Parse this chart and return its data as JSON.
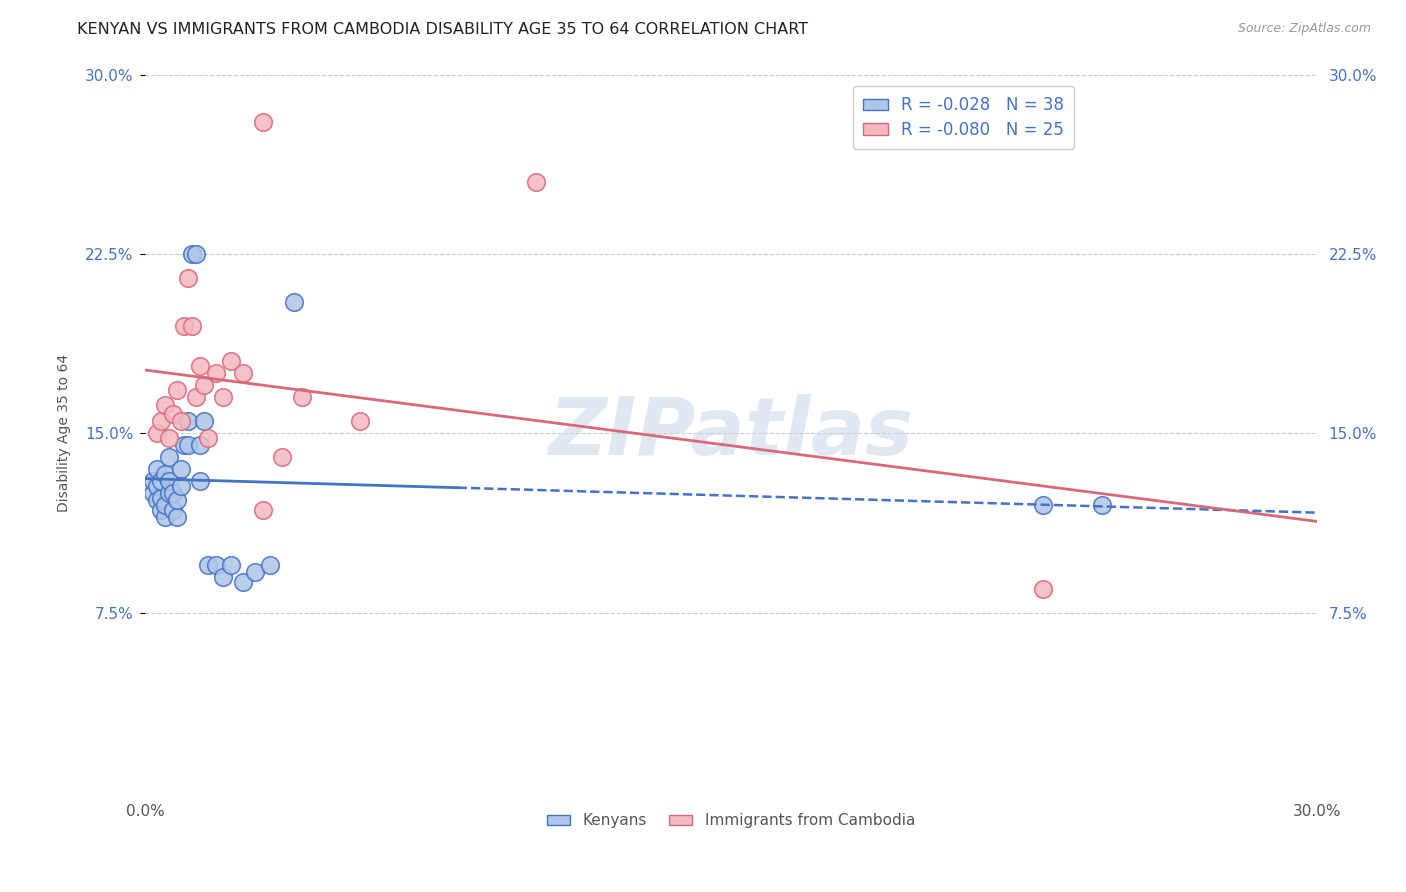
{
  "title": "KENYAN VS IMMIGRANTS FROM CAMBODIA DISABILITY AGE 35 TO 64 CORRELATION CHART",
  "source": "Source: ZipAtlas.com",
  "ylabel": "Disability Age 35 to 64",
  "xlim": [
    0.0,
    0.3
  ],
  "ylim": [
    0.0,
    0.3
  ],
  "ytick_labels": [
    "7.5%",
    "15.0%",
    "22.5%",
    "30.0%"
  ],
  "ytick_positions": [
    0.075,
    0.15,
    0.225,
    0.3
  ],
  "kenyan_x": [
    0.002,
    0.002,
    0.003,
    0.003,
    0.003,
    0.004,
    0.004,
    0.004,
    0.005,
    0.005,
    0.005,
    0.006,
    0.006,
    0.006,
    0.007,
    0.007,
    0.008,
    0.008,
    0.009,
    0.009,
    0.01,
    0.011,
    0.011,
    0.012,
    0.013,
    0.014,
    0.014,
    0.015,
    0.016,
    0.018,
    0.02,
    0.022,
    0.025,
    0.028,
    0.032,
    0.038,
    0.23,
    0.245
  ],
  "kenyan_y": [
    0.125,
    0.13,
    0.122,
    0.128,
    0.135,
    0.118,
    0.123,
    0.13,
    0.115,
    0.12,
    0.133,
    0.14,
    0.125,
    0.13,
    0.118,
    0.125,
    0.115,
    0.122,
    0.135,
    0.128,
    0.145,
    0.155,
    0.145,
    0.225,
    0.225,
    0.145,
    0.13,
    0.155,
    0.095,
    0.095,
    0.09,
    0.095,
    0.088,
    0.092,
    0.095,
    0.205,
    0.12,
    0.12
  ],
  "cambodia_x": [
    0.003,
    0.004,
    0.005,
    0.006,
    0.007,
    0.008,
    0.009,
    0.01,
    0.011,
    0.012,
    0.013,
    0.014,
    0.015,
    0.016,
    0.018,
    0.02,
    0.022,
    0.025,
    0.03,
    0.03,
    0.035,
    0.04,
    0.055,
    0.1,
    0.23
  ],
  "cambodia_y": [
    0.15,
    0.155,
    0.162,
    0.148,
    0.158,
    0.168,
    0.155,
    0.195,
    0.215,
    0.195,
    0.165,
    0.178,
    0.17,
    0.148,
    0.175,
    0.165,
    0.18,
    0.175,
    0.118,
    0.28,
    0.14,
    0.165,
    0.155,
    0.255,
    0.085
  ],
  "kenyan_color": "#aec6e8",
  "cambodia_color": "#f4b8c1",
  "kenyan_line_color": "#4472c4",
  "cambodia_line_color": "#d9697a",
  "kenyan_R": -0.028,
  "kenyan_N": 38,
  "cambodia_R": -0.08,
  "cambodia_N": 25,
  "legend_text_color": "#4472c4",
  "watermark": "ZIPatlas",
  "background_color": "#ffffff",
  "grid_color": "#cccccc",
  "title_fontsize": 11.5,
  "axis_label_fontsize": 10,
  "tick_fontsize": 11
}
